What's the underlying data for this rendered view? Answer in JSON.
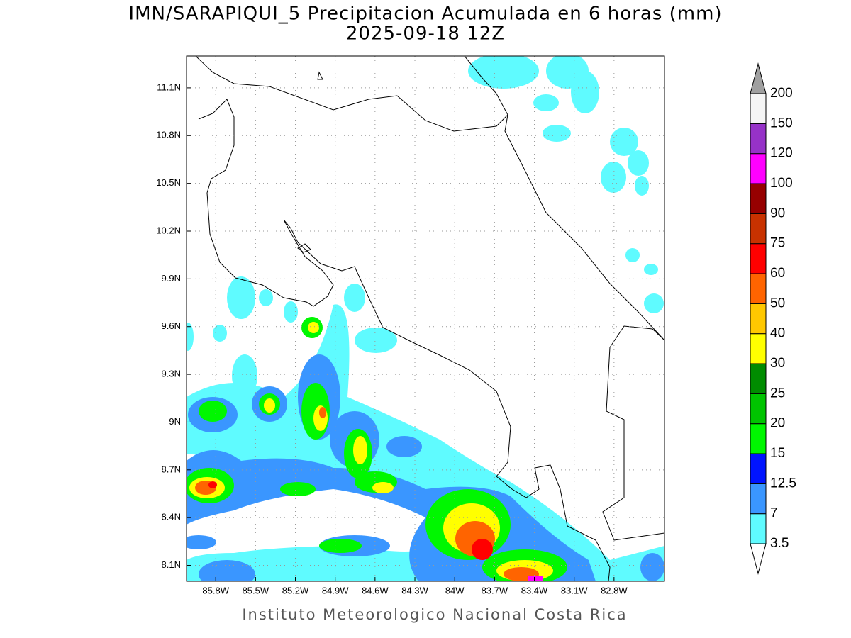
{
  "chart_data": {
    "type": "map",
    "title": "IMN/SARAPIQUI_5 Precipitacion Acumulada en 6 horas (mm)",
    "subtitle": "2025-09-18 12Z",
    "footer": "Instituto Meteorologico Nacional Costa Rica",
    "xlim": [
      -86.02,
      -82.42
    ],
    "ylim": [
      8.0,
      11.3
    ],
    "xticks": [
      {
        "value": -85.8,
        "label": "85.8W"
      },
      {
        "value": -85.5,
        "label": "85.5W"
      },
      {
        "value": -85.2,
        "label": "85.2W"
      },
      {
        "value": -84.9,
        "label": "84.9W"
      },
      {
        "value": -84.6,
        "label": "84.6W"
      },
      {
        "value": -84.3,
        "label": "84.3W"
      },
      {
        "value": -84.0,
        "label": "84W"
      },
      {
        "value": -83.7,
        "label": "83.7W"
      },
      {
        "value": -83.4,
        "label": "83.4W"
      },
      {
        "value": -83.1,
        "label": "83.1W"
      },
      {
        "value": -82.8,
        "label": "82.8W"
      }
    ],
    "yticks": [
      {
        "value": 8.1,
        "label": "8.1N"
      },
      {
        "value": 8.4,
        "label": "8.4N"
      },
      {
        "value": 8.7,
        "label": "8.7N"
      },
      {
        "value": 9.0,
        "label": "9N"
      },
      {
        "value": 9.3,
        "label": "9.3N"
      },
      {
        "value": 9.6,
        "label": "9.6N"
      },
      {
        "value": 9.9,
        "label": "9.9N"
      },
      {
        "value": 10.2,
        "label": "10.2N"
      },
      {
        "value": 10.5,
        "label": "10.5N"
      },
      {
        "value": 10.8,
        "label": "10.8N"
      },
      {
        "value": 11.1,
        "label": "11.1N"
      }
    ],
    "grid": true,
    "colorbar": {
      "levels": [
        3.5,
        7,
        12.5,
        15,
        20,
        25,
        30,
        40,
        50,
        60,
        75,
        90,
        100,
        120,
        150,
        200
      ],
      "colors": [
        "#5ffbff",
        "#3a96ff",
        "#0014ff",
        "#00f700",
        "#00c400",
        "#008c00",
        "#ffff00",
        "#ffc800",
        "#ff6400",
        "#ff0000",
        "#c83200",
        "#960000",
        "#ff00ff",
        "#9632c8",
        "#f5f5f5"
      ],
      "below_color": "#ffffff",
      "above_color": "#a0a0a0"
    }
  }
}
